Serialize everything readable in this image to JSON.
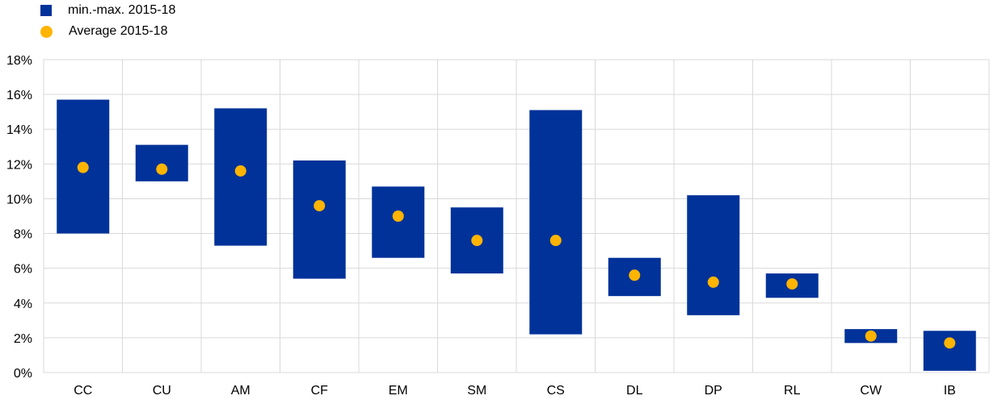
{
  "chart_data": {
    "type": "range-bar with average markers",
    "categories": [
      "CC",
      "CU",
      "AM",
      "CF",
      "EM",
      "SM",
      "CS",
      "DL",
      "DP",
      "RL",
      "CW",
      "IB"
    ],
    "series": [
      {
        "name": "min.-max. 2015-18",
        "kind": "range",
        "min": [
          8.0,
          11.0,
          7.3,
          5.4,
          6.6,
          5.7,
          2.2,
          4.4,
          3.3,
          4.3,
          1.7,
          0.1
        ],
        "max": [
          15.7,
          13.1,
          15.2,
          12.2,
          10.7,
          9.5,
          15.1,
          6.6,
          10.2,
          5.7,
          2.5,
          2.4
        ],
        "color": "#003299"
      },
      {
        "name": "Average 2015-18",
        "kind": "point",
        "values": [
          11.8,
          11.7,
          11.6,
          9.6,
          9.0,
          7.6,
          7.6,
          5.6,
          5.2,
          5.1,
          2.1,
          1.7
        ],
        "color": "#FFB400"
      }
    ],
    "y_ticks": [
      "0%",
      "2%",
      "4%",
      "6%",
      "8%",
      "10%",
      "12%",
      "14%",
      "16%",
      "18%"
    ],
    "ylim": [
      0,
      18
    ],
    "grid": true,
    "legend_position": "top-left"
  }
}
